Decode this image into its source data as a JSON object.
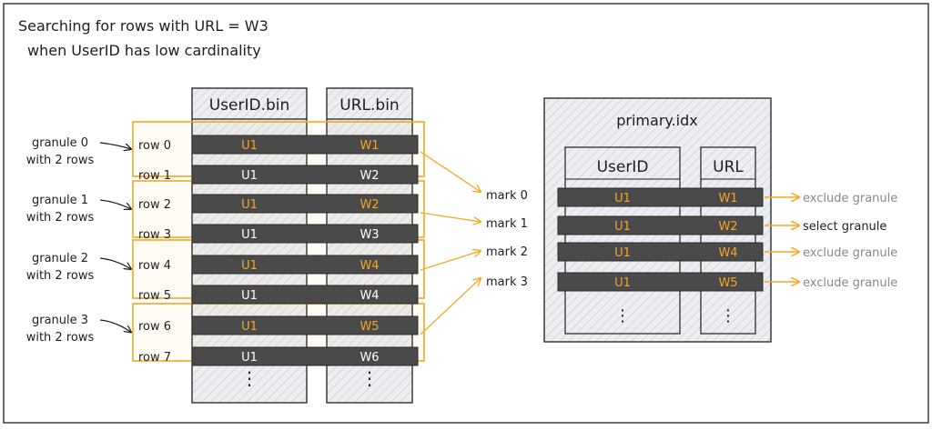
{
  "title": {
    "line1": "Searching for rows with URL = W3",
    "line2": "when UserID has low cardinality"
  },
  "data_files": {
    "userid_header": "UserID.bin",
    "url_header": "URL.bin",
    "rows": [
      {
        "label": "row 0",
        "userid": "U1",
        "url": "W1"
      },
      {
        "label": "row 1",
        "userid": "U1",
        "url": "W2"
      },
      {
        "label": "row 2",
        "userid": "U1",
        "url": "W2"
      },
      {
        "label": "row 3",
        "userid": "U1",
        "url": "W3"
      },
      {
        "label": "row 4",
        "userid": "U1",
        "url": "W4"
      },
      {
        "label": "row 5",
        "userid": "U1",
        "url": "W4"
      },
      {
        "label": "row 6",
        "userid": "U1",
        "url": "W5"
      },
      {
        "label": "row 7",
        "userid": "U1",
        "url": "W6"
      }
    ],
    "ellipsis": "⋮"
  },
  "granules": [
    {
      "line1": "granule 0",
      "line2": "with 2 rows"
    },
    {
      "line1": "granule 1",
      "line2": "with 2 rows"
    },
    {
      "line1": "granule 2",
      "line2": "with 2 rows"
    },
    {
      "line1": "granule 3",
      "line2": "with 2 rows"
    }
  ],
  "marks": [
    "mark 0",
    "mark 1",
    "mark 2",
    "mark 3"
  ],
  "primary_index": {
    "title": "primary.idx",
    "userid_header": "UserID",
    "url_header": "URL",
    "entries": [
      {
        "userid": "U1",
        "url": "W1",
        "result": "exclude granule",
        "selected": false
      },
      {
        "userid": "U1",
        "url": "W2",
        "result": "select granule",
        "selected": true
      },
      {
        "userid": "U1",
        "url": "W4",
        "result": "exclude granule",
        "selected": false
      },
      {
        "userid": "U1",
        "url": "W5",
        "result": "exclude granule",
        "selected": false
      }
    ]
  },
  "colors": {
    "highlight": "#f5a623",
    "dark_bar": "#4a4a4a",
    "ink": "#1e1e1e",
    "muted": "#888888",
    "panel": "#e9ecef",
    "panel_hatch": "#c7cbd1"
  }
}
